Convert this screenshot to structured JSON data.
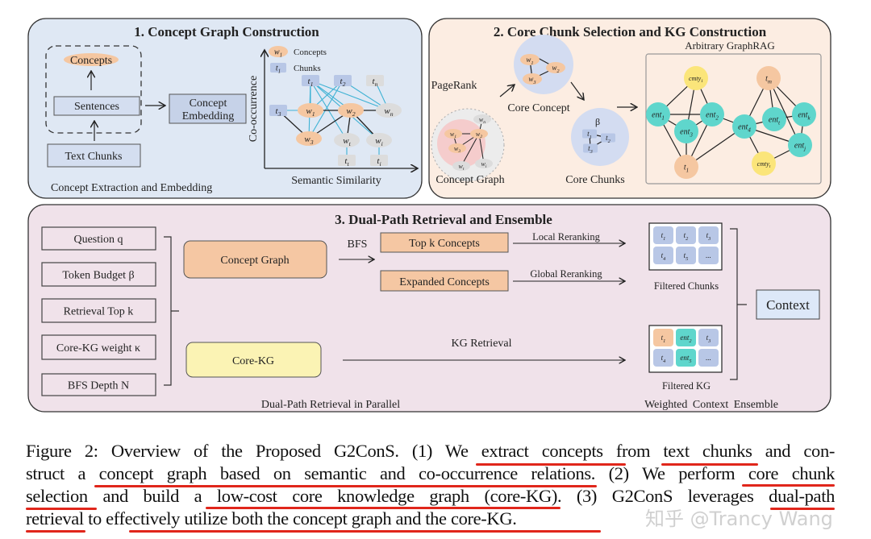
{
  "panel1": {
    "title": "1. Concept Graph Construction",
    "concepts": "Concepts",
    "sentences": "Sentences",
    "text_chunks": "Text Chunks",
    "concept_embedding_1": "Concept",
    "concept_embedding_2": "Embedding",
    "footer": "Concept Extraction and Embedding",
    "y_axis": "Co-occurrence",
    "x_axis": "Semantic Similarity",
    "legend": {
      "concepts": "Concepts",
      "chunks": "Chunks",
      "concept_symbol": {
        "b": "w",
        "s": "1"
      },
      "chunk_symbol": {
        "b": "t",
        "s": "1"
      }
    },
    "nodes": {
      "t1": {
        "b": "t",
        "s": "1"
      },
      "t2": {
        "b": "t",
        "s": "2"
      },
      "tn": {
        "b": "t",
        "s": "n"
      },
      "t3": {
        "b": "t",
        "s": "3"
      },
      "w1": {
        "b": "w",
        "s": "1"
      },
      "w2": {
        "b": "w",
        "s": "2"
      },
      "wn": {
        "b": "w",
        "s": "n"
      },
      "w3": {
        "b": "w",
        "s": "3"
      },
      "wt": {
        "b": "w",
        "s": "t"
      },
      "wi": {
        "b": "w",
        "s": "i"
      },
      "tt": {
        "b": "t",
        "s": "t"
      },
      "ti": {
        "b": "t",
        "s": "i"
      }
    }
  },
  "panel2": {
    "title": "2. Core Chunk Selection and KG Construction",
    "pagerank": "PageRank",
    "core_concept": "Core Concept",
    "concept_graph": "Concept Graph",
    "core_chunks": "Core Chunks",
    "beta": "β",
    "graphrag_title": "Arbitrary GraphRAG",
    "core_concept_nodes": {
      "w1": {
        "b": "w",
        "s": "1"
      },
      "w2": {
        "b": "w",
        "s": "2"
      },
      "w3": {
        "b": "w",
        "s": "3"
      }
    },
    "concept_graph_nodes": {
      "w1": {
        "b": "w",
        "s": "1"
      },
      "w2": {
        "b": "w",
        "s": "2"
      },
      "w3": {
        "b": "w",
        "s": "3"
      },
      "wn": {
        "b": "w",
        "s": "n"
      },
      "wt": {
        "b": "w",
        "s": "t"
      },
      "wi": {
        "b": "w",
        "s": "i"
      }
    },
    "core_chunk_nodes": {
      "t1": {
        "b": "t",
        "s": "1"
      },
      "t2": {
        "b": "t",
        "s": "2"
      },
      "t3": {
        "b": "t",
        "s": "3"
      }
    },
    "kg_nodes": {
      "cmty1": {
        "b": "cmty",
        "s": "1"
      },
      "tm": {
        "b": "t",
        "s": "m"
      },
      "ent1": {
        "b": "ent",
        "s": "1"
      },
      "ent2": {
        "b": "ent",
        "s": "2"
      },
      "ent3": {
        "b": "ent",
        "s": "3"
      },
      "ent4": {
        "b": "ent",
        "s": "4"
      },
      "entt": {
        "b": "ent",
        "s": "t"
      },
      "entk": {
        "b": "ent",
        "s": "k"
      },
      "entj": {
        "b": "ent",
        "s": "j"
      },
      "t1": {
        "b": "t",
        "s": "1"
      },
      "cmtyt": {
        "b": "cmty",
        "s": "t"
      }
    }
  },
  "panel3": {
    "title": "3. Dual-Path Retrieval and Ensemble",
    "inputs": [
      "Question q",
      "Token Budget β",
      "Retrieval Top k",
      "Core-KG weight κ",
      "BFS Depth N"
    ],
    "concept_graph": "Concept Graph",
    "core_kg": "Core-KG",
    "bfs": "BFS",
    "top_k_concepts": "Top k Concepts",
    "expanded_concepts": "Expanded Concepts",
    "local_reranking": "Local Reranking",
    "global_reranking": "Global Reranking",
    "kg_retrieval": "KG Retrieval",
    "filtered_chunks": "Filtered Chunks",
    "filtered_kg": "Filtered KG",
    "context": "Context",
    "footer_left": "Dual-Path Retrieval in Parallel",
    "footer_right": "Weighted  Context  Ensemble",
    "chunk_cells": [
      {
        "b": "t",
        "s": "1"
      },
      {
        "b": "t",
        "s": "2"
      },
      {
        "b": "t",
        "s": "3"
      },
      {
        "b": "t",
        "s": "4"
      },
      {
        "b": "t",
        "s": "5"
      },
      {
        "b": "...",
        "s": ""
      }
    ],
    "kg_cells": [
      {
        "b": "t",
        "s": "1"
      },
      {
        "b": "ent",
        "s": "2"
      },
      {
        "b": "t",
        "s": "3"
      },
      {
        "b": "t",
        "s": "4"
      },
      {
        "b": "ent",
        "s": "5"
      },
      {
        "b": "...",
        "s": ""
      }
    ]
  },
  "caption": {
    "lines": [
      "Figure 2: Overview of the Proposed G2ConS. (1) We extract concepts from text chunks and con-",
      "struct a concept graph based on semantic and co-occurrence relations. (2) We perform core chunk",
      "selection and build a low-cost core knowledge graph (core-KG). (3) G2ConS leverages dual-path",
      "retrieval to effectively utilize both the concept graph and the core-KG."
    ],
    "underline_color": "#e0261b"
  },
  "watermark": "知乎 @Trancy Wang",
  "colors": {
    "panel1_bg": "#dfe8f4",
    "panel2_bg": "#fcede2",
    "panel3_bg": "#f0e2ea",
    "concept": "#f5c7a1",
    "chunk": "#b8c7e6",
    "inactive": "#dcdcdc",
    "entity": "#5fd6cc",
    "community": "#fbe57a",
    "core_kg": "#fbf3b4",
    "context": "#dde8f8",
    "cooccurrence_edge": "#3fb2d4"
  }
}
